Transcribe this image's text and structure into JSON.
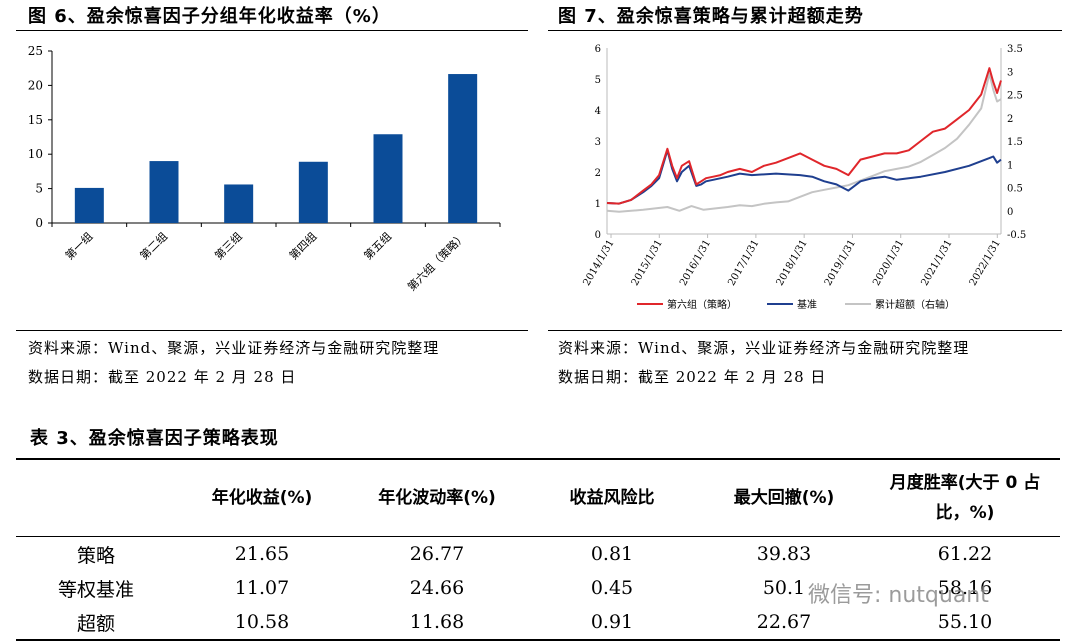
{
  "fig6": {
    "title": "图 6、盈余惊喜因子分组年化收益率（%）",
    "source": "资料来源：Wind、聚源，兴业证券经济与金融研究院整理",
    "date": "数据日期：截至 2022 年 2 月 28 日"
  },
  "fig7": {
    "title": "图 7、盈余惊喜策略与累计超额走势",
    "source": "资料来源：Wind、聚源，兴业证券经济与金融研究院整理",
    "date": "数据日期：截至 2022 年 2 月 28 日"
  },
  "chart_data": [
    {
      "type": "bar",
      "categories": [
        "第一组",
        "第二组",
        "第三组",
        "第四组",
        "第五组",
        "第六组（策略）"
      ],
      "values": [
        5.1,
        9.0,
        5.6,
        8.9,
        12.9,
        21.65
      ],
      "ylim": [
        0,
        25
      ],
      "yticks": [
        "0",
        "5",
        "10",
        "15",
        "20",
        "25"
      ],
      "colors": {
        "bar": "#0b4c98"
      },
      "grid": false
    },
    {
      "type": "line",
      "x_ticks": [
        "2014/1/31",
        "2015/1/31",
        "2016/1/31",
        "2017/1/31",
        "2018/1/31",
        "2019/1/31",
        "2020/1/31",
        "2021/1/31",
        "2022/1/31"
      ],
      "ylim": [
        0,
        6
      ],
      "yticks": [
        "0",
        "1",
        "2",
        "3",
        "4",
        "5",
        "6"
      ],
      "y2lim": [
        -0.5,
        3.5
      ],
      "y2ticks": [
        "-0.5",
        "0",
        "0.5",
        "1",
        "1.5",
        "2",
        "2.5",
        "3",
        "3.5"
      ],
      "legend_position": "bottom",
      "series": [
        {
          "name": "第六组（策略）",
          "axis": "left",
          "color": "#e0262b",
          "x": [
            2014.0,
            2014.25,
            2014.5,
            2014.75,
            2014.92,
            2015.08,
            2015.25,
            2015.35,
            2015.45,
            2015.55,
            2015.7,
            2015.85,
            2015.95,
            2016.05,
            2016.2,
            2016.35,
            2016.5,
            2016.75,
            2017.0,
            2017.25,
            2017.5,
            2017.75,
            2018.0,
            2018.25,
            2018.5,
            2018.75,
            2019.0,
            2019.25,
            2019.5,
            2019.75,
            2020.0,
            2020.25,
            2020.5,
            2020.75,
            2021.0,
            2021.25,
            2021.5,
            2021.75,
            2021.92,
            2022.0,
            2022.08,
            2022.16
          ],
          "y": [
            1.0,
            0.98,
            1.1,
            1.4,
            1.6,
            1.9,
            2.75,
            2.2,
            1.8,
            2.2,
            2.35,
            1.6,
            1.7,
            1.8,
            1.85,
            1.9,
            2.0,
            2.1,
            2.0,
            2.2,
            2.3,
            2.45,
            2.6,
            2.4,
            2.2,
            2.1,
            1.9,
            2.4,
            2.5,
            2.6,
            2.6,
            2.7,
            3.0,
            3.3,
            3.4,
            3.7,
            4.0,
            4.5,
            5.35,
            4.9,
            4.55,
            4.95
          ]
        },
        {
          "name": "基准",
          "axis": "left",
          "color": "#1f3f8f",
          "x": [
            2014.0,
            2014.25,
            2014.5,
            2014.75,
            2014.92,
            2015.08,
            2015.25,
            2015.35,
            2015.45,
            2015.55,
            2015.7,
            2015.85,
            2015.95,
            2016.05,
            2016.2,
            2016.5,
            2016.75,
            2017.0,
            2017.5,
            2018.0,
            2018.25,
            2018.5,
            2018.75,
            2019.0,
            2019.25,
            2019.5,
            2019.75,
            2020.0,
            2020.5,
            2021.0,
            2021.5,
            2021.75,
            2021.92,
            2022.0,
            2022.08,
            2022.16
          ],
          "y": [
            1.0,
            0.98,
            1.1,
            1.35,
            1.55,
            1.8,
            2.7,
            2.1,
            1.7,
            2.0,
            2.2,
            1.55,
            1.6,
            1.7,
            1.75,
            1.85,
            1.95,
            1.9,
            1.95,
            1.9,
            1.85,
            1.7,
            1.6,
            1.4,
            1.7,
            1.8,
            1.85,
            1.75,
            1.85,
            2.0,
            2.2,
            2.35,
            2.45,
            2.5,
            2.3,
            2.4
          ]
        },
        {
          "name": "累计超额（右轴）",
          "axis": "right",
          "color": "#c4c4c4",
          "x": [
            2014.0,
            2014.25,
            2014.5,
            2014.75,
            2015.0,
            2015.25,
            2015.5,
            2015.75,
            2016.0,
            2016.25,
            2016.5,
            2016.75,
            2017.0,
            2017.25,
            2017.5,
            2017.75,
            2018.0,
            2018.25,
            2018.5,
            2018.75,
            2019.0,
            2019.25,
            2019.5,
            2019.75,
            2020.0,
            2020.25,
            2020.5,
            2020.75,
            2021.0,
            2021.25,
            2021.5,
            2021.75,
            2021.92,
            2022.0,
            2022.08,
            2022.16
          ],
          "y": [
            0.0,
            -0.02,
            0.0,
            0.02,
            0.05,
            0.08,
            0.0,
            0.1,
            0.02,
            0.05,
            0.08,
            0.12,
            0.1,
            0.15,
            0.18,
            0.2,
            0.3,
            0.4,
            0.45,
            0.5,
            0.55,
            0.65,
            0.75,
            0.85,
            0.9,
            0.95,
            1.05,
            1.2,
            1.35,
            1.55,
            1.85,
            2.2,
            2.95,
            2.6,
            2.35,
            2.4
          ]
        }
      ]
    }
  ],
  "table": {
    "title": "表 3、盈余惊喜因子策略表现",
    "headers": [
      "",
      "年化收益(%)",
      "年化波动率(%)",
      "收益风险比",
      "最大回撤(%)",
      "月度胜率(大于 0 占比，%)"
    ],
    "rows": [
      [
        "策略",
        "21.65",
        "26.77",
        "0.81",
        "39.83",
        "61.22"
      ],
      [
        "等权基准",
        "11.07",
        "24.66",
        "0.45",
        "50.1",
        "58.16"
      ],
      [
        "超额",
        "10.58",
        "11.68",
        "0.91",
        "22.67",
        "55.10"
      ]
    ]
  },
  "watermark": "微信号: nutquant"
}
